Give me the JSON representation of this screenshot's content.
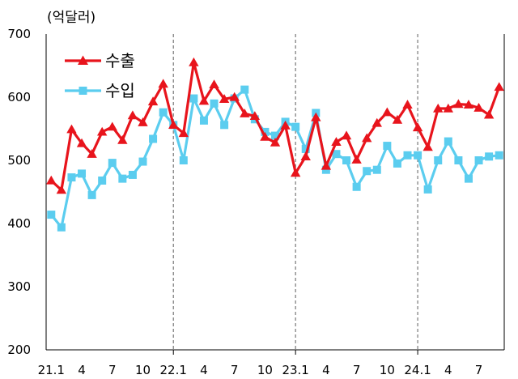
{
  "chart_data": {
    "type": "line",
    "unit_label": "(억달러)",
    "y_range": [
      200,
      700
    ],
    "y_ticks": [
      200,
      300,
      400,
      500,
      600,
      700
    ],
    "x_ticks": [
      "21.1",
      "4",
      "7",
      "10",
      "22.1",
      "4",
      "7",
      "10",
      "23.1",
      "4",
      "7",
      "10",
      "24.1",
      "4",
      "7"
    ],
    "x_tick_months": [
      1,
      4,
      7,
      10,
      13,
      16,
      19,
      22,
      25,
      28,
      31,
      34,
      37,
      40,
      43
    ],
    "year_dividers": [
      12.5,
      24.5,
      36.5
    ],
    "grid": false,
    "legend_position": "top-left",
    "colors": {
      "export": "#e8141c",
      "import": "#5bcdef",
      "divider": "#777777"
    },
    "series": [
      {
        "name": "수출",
        "marker": "triangle",
        "values": [
          468,
          453,
          549,
          527,
          510,
          545,
          553,
          532,
          571,
          560,
          593,
          621,
          556,
          543,
          655,
          594,
          620,
          597,
          600,
          574,
          570,
          537,
          528,
          555,
          480,
          506,
          568,
          491,
          529,
          539,
          501,
          535,
          559,
          576,
          564,
          588,
          552,
          521,
          582,
          582,
          589,
          588,
          583,
          572,
          616
        ]
      },
      {
        "name": "수입",
        "marker": "square",
        "values": [
          414,
          394,
          473,
          479,
          445,
          468,
          496,
          471,
          477,
          498,
          534,
          576,
          556,
          500,
          598,
          563,
          590,
          556,
          598,
          612,
          565,
          545,
          539,
          561,
          553,
          518,
          575,
          485,
          510,
          500,
          458,
          483,
          485,
          523,
          495,
          508,
          508,
          454,
          500,
          530,
          500,
          471,
          500,
          506,
          508
        ]
      }
    ]
  }
}
